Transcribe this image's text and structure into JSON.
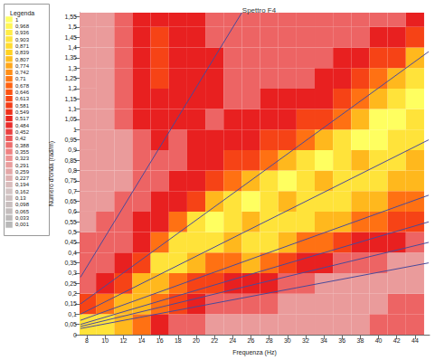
{
  "chart_data": {
    "type": "heatmap",
    "title": "Spettro F4",
    "x_label": "Frequenza (Hz)",
    "y_label": "Numero d'onda (rad/m)",
    "xlim": [
      7.2,
      45.6
    ],
    "xticks": [
      8,
      10,
      12,
      14,
      16,
      18,
      20,
      22,
      24,
      26,
      28,
      30,
      32,
      34,
      36,
      38,
      40,
      42,
      44
    ],
    "ylim": [
      0,
      1.57
    ],
    "yticks": [
      0,
      {
        "value": 0.05,
        "label": "0,05"
      },
      {
        "value": 0.1,
        "label": "0,1"
      },
      {
        "value": 0.15,
        "label": "0,15"
      },
      {
        "value": 0.2,
        "label": "0,2"
      },
      {
        "value": 0.25,
        "label": "0,25"
      },
      {
        "value": 0.3,
        "label": "0,3"
      },
      {
        "value": 0.35,
        "label": "0,35"
      },
      {
        "value": 0.4,
        "label": "0,4"
      },
      {
        "value": 0.45,
        "label": "0,45"
      },
      {
        "value": 0.5,
        "label": "0,5"
      },
      {
        "value": 0.55,
        "label": "0,55"
      },
      {
        "value": 0.6,
        "label": "0,6"
      },
      {
        "value": 0.65,
        "label": "0,65"
      },
      {
        "value": 0.7,
        "label": "0,7"
      },
      {
        "value": 0.75,
        "label": "0,75"
      },
      {
        "value": 0.8,
        "label": "0,8"
      },
      {
        "value": 0.85,
        "label": "0,85"
      },
      {
        "value": 0.9,
        "label": "0,9"
      },
      {
        "value": 0.95,
        "label": "0,95"
      },
      1,
      {
        "value": 1.05,
        "label": "1,05"
      },
      {
        "value": 1.1,
        "label": "1,1"
      },
      {
        "value": 1.15,
        "label": "1,15"
      },
      {
        "value": 1.2,
        "label": "1,2"
      },
      {
        "value": 1.25,
        "label": "1,25"
      },
      {
        "value": 1.3,
        "label": "1,3"
      },
      {
        "value": 1.35,
        "label": "1,35"
      },
      {
        "value": 1.4,
        "label": "1,4"
      },
      {
        "value": 1.45,
        "label": "1,45"
      },
      {
        "value": 1.5,
        "label": "1,5"
      },
      {
        "value": 1.55,
        "label": "1,55"
      }
    ],
    "grid": false,
    "heatmap": {
      "x": [
        8,
        10,
        12,
        14,
        16,
        18,
        20,
        22,
        24,
        26,
        28,
        30,
        32,
        34,
        36,
        38,
        40,
        42,
        44
      ],
      "y": [
        0.05,
        0.15,
        0.25,
        0.35,
        0.45,
        0.55,
        0.65,
        0.75,
        0.85,
        0.95,
        1.05,
        1.15,
        1.25,
        1.35,
        1.45,
        1.55
      ],
      "values": [
        [
          0.9,
          0.9,
          0.8,
          0.7,
          0.5,
          0.4,
          0.4,
          0.3,
          0.3,
          0.3,
          0.3,
          0.3,
          0.3,
          0.3,
          0.3,
          0.3,
          0.4,
          0.4,
          0.4
        ],
        [
          0.6,
          0.7,
          0.8,
          0.8,
          0.7,
          0.6,
          0.5,
          0.4,
          0.4,
          0.4,
          0.4,
          0.3,
          0.3,
          0.3,
          0.3,
          0.3,
          0.3,
          0.4,
          0.4
        ],
        [
          0.4,
          0.5,
          0.6,
          0.8,
          0.8,
          0.7,
          0.6,
          0.6,
          0.5,
          0.5,
          0.5,
          0.4,
          0.4,
          0.3,
          0.3,
          0.3,
          0.3,
          0.3,
          0.3
        ],
        [
          0.4,
          0.4,
          0.5,
          0.6,
          0.9,
          0.9,
          0.8,
          0.7,
          0.7,
          0.8,
          0.7,
          0.6,
          0.5,
          0.5,
          0.4,
          0.4,
          0.4,
          0.3,
          0.3
        ],
        [
          0.4,
          0.4,
          0.4,
          0.5,
          0.7,
          0.9,
          0.9,
          0.9,
          0.8,
          0.9,
          0.9,
          0.8,
          0.7,
          0.7,
          0.6,
          0.5,
          0.5,
          0.5,
          0.4
        ],
        [
          0.3,
          0.4,
          0.4,
          0.5,
          0.5,
          0.7,
          0.9,
          1.0,
          0.9,
          0.8,
          0.9,
          0.9,
          0.9,
          0.8,
          0.8,
          0.7,
          0.7,
          0.6,
          0.6
        ],
        [
          0.3,
          0.3,
          0.4,
          0.4,
          0.5,
          0.5,
          0.6,
          0.8,
          0.9,
          1.0,
          0.9,
          0.8,
          0.9,
          0.9,
          0.9,
          0.8,
          0.8,
          0.7,
          0.7
        ],
        [
          0.3,
          0.3,
          0.3,
          0.4,
          0.4,
          0.5,
          0.5,
          0.6,
          0.7,
          0.8,
          0.9,
          1.0,
          0.9,
          0.8,
          0.9,
          0.9,
          0.9,
          0.8,
          0.8
        ],
        [
          0.3,
          0.3,
          0.3,
          0.4,
          0.4,
          0.4,
          0.5,
          0.5,
          0.6,
          0.6,
          0.7,
          0.8,
          0.9,
          1.0,
          0.9,
          0.8,
          0.9,
          0.9,
          0.8
        ],
        [
          0.3,
          0.3,
          0.3,
          0.4,
          0.5,
          0.4,
          0.5,
          0.5,
          0.5,
          0.5,
          0.6,
          0.6,
          0.7,
          0.8,
          0.9,
          1.0,
          1.0,
          0.9,
          0.9
        ],
        [
          0.3,
          0.3,
          0.4,
          0.5,
          0.5,
          0.5,
          0.5,
          0.4,
          0.5,
          0.5,
          0.5,
          0.5,
          0.6,
          0.6,
          0.7,
          0.8,
          1.0,
          1.0,
          0.9
        ],
        [
          0.3,
          0.3,
          0.4,
          0.5,
          0.5,
          0.5,
          0.5,
          0.5,
          0.4,
          0.4,
          0.5,
          0.5,
          0.5,
          0.5,
          0.6,
          0.7,
          0.8,
          0.9,
          1.0
        ],
        [
          0.3,
          0.3,
          0.4,
          0.5,
          0.6,
          0.5,
          0.5,
          0.5,
          0.4,
          0.4,
          0.4,
          0.4,
          0.4,
          0.5,
          0.5,
          0.6,
          0.7,
          0.8,
          0.9
        ],
        [
          0.3,
          0.3,
          0.4,
          0.5,
          0.6,
          0.5,
          0.5,
          0.5,
          0.4,
          0.4,
          0.4,
          0.4,
          0.4,
          0.4,
          0.5,
          0.5,
          0.6,
          0.6,
          0.8
        ],
        [
          0.3,
          0.3,
          0.4,
          0.5,
          0.6,
          0.5,
          0.5,
          0.4,
          0.4,
          0.4,
          0.4,
          0.4,
          0.4,
          0.4,
          0.4,
          0.4,
          0.5,
          0.5,
          0.6
        ],
        [
          0.3,
          0.3,
          0.4,
          0.5,
          0.5,
          0.5,
          0.5,
          0.4,
          0.4,
          0.4,
          0.4,
          0.4,
          0.4,
          0.4,
          0.4,
          0.4,
          0.4,
          0.4,
          0.5
        ]
      ]
    },
    "colorbar": {
      "title": "Legenda",
      "range": [
        0.001,
        1
      ],
      "ticks": [
        1,
        {
          "value": 0.968,
          "label": "0,968"
        },
        {
          "value": 0.936,
          "label": "0,936"
        },
        {
          "value": 0.903,
          "label": "0,903"
        },
        {
          "value": 0.871,
          "label": "0,871"
        },
        {
          "value": 0.839,
          "label": "0,839"
        },
        {
          "value": 0.807,
          "label": "0,807"
        },
        {
          "value": 0.774,
          "label": "0,774"
        },
        {
          "value": 0.742,
          "label": "0,742"
        },
        {
          "value": 0.71,
          "label": "0,71"
        },
        {
          "value": 0.678,
          "label": "0,678"
        },
        {
          "value": 0.646,
          "label": "0,646"
        },
        {
          "value": 0.613,
          "label": "0,613"
        },
        {
          "value": 0.581,
          "label": "0,581"
        },
        {
          "value": 0.549,
          "label": "0,549"
        },
        {
          "value": 0.517,
          "label": "0,517"
        },
        {
          "value": 0.484,
          "label": "0,484"
        },
        {
          "value": 0.452,
          "label": "0,452"
        },
        {
          "value": 0.42,
          "label": "0,42"
        },
        {
          "value": 0.388,
          "label": "0,388"
        },
        {
          "value": 0.355,
          "label": "0,355"
        },
        {
          "value": 0.323,
          "label": "0,323"
        },
        {
          "value": 0.291,
          "label": "0,291"
        },
        {
          "value": 0.259,
          "label": "0,259"
        },
        {
          "value": 0.227,
          "label": "0,227"
        },
        {
          "value": 0.194,
          "label": "0,194"
        },
        {
          "value": 0.162,
          "label": "0,162"
        },
        {
          "value": 0.13,
          "label": "0,13"
        },
        {
          "value": 0.098,
          "label": "0,098"
        },
        {
          "value": 0.065,
          "label": "0,065"
        },
        {
          "value": 0.033,
          "label": "0,033"
        },
        {
          "value": 0.001,
          "label": "0,001"
        }
      ]
    },
    "lines": [
      {
        "x": [
          7.3,
          25
        ],
        "y": [
          0.28,
          1.57
        ]
      },
      {
        "x": [
          7.3,
          45.5
        ],
        "y": [
          0.15,
          1.38
        ]
      },
      {
        "x": [
          7.3,
          45.5
        ],
        "y": [
          0.1,
          0.95
        ]
      },
      {
        "x": [
          7.3,
          45.5
        ],
        "y": [
          0.07,
          0.68
        ]
      },
      {
        "x": [
          7.3,
          45.5
        ],
        "y": [
          0.05,
          0.55
        ]
      },
      {
        "x": [
          7.3,
          45.5
        ],
        "y": [
          0.04,
          0.45
        ]
      },
      {
        "x": [
          7.3,
          45.5
        ],
        "y": [
          0.03,
          0.35
        ]
      }
    ]
  }
}
